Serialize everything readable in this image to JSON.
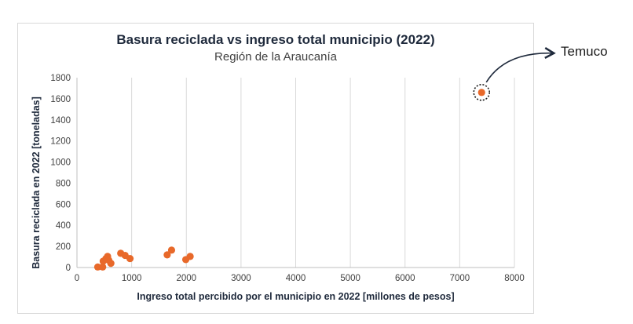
{
  "chart_data": {
    "type": "scatter",
    "title": "Basura reciclada vs ingreso total municipio (2022)",
    "subtitle": "Región de la Araucanía",
    "xlabel": "Ingreso total percibido por el municipio en 2022 [millones de pesos]",
    "ylabel": "Basura reciclada en 2022 [toneladas]",
    "xlim": [
      0,
      8000
    ],
    "ylim": [
      0,
      1800
    ],
    "xticks": [
      0,
      1000,
      2000,
      3000,
      4000,
      5000,
      6000,
      7000,
      8000
    ],
    "yticks": [
      0,
      200,
      400,
      600,
      800,
      1000,
      1200,
      1400,
      1600,
      1800
    ],
    "grid": "vertical",
    "marker_color": "#e8692a",
    "points": [
      {
        "x": 380,
        "y": 5
      },
      {
        "x": 470,
        "y": 5
      },
      {
        "x": 480,
        "y": 60
      },
      {
        "x": 530,
        "y": 85
      },
      {
        "x": 560,
        "y": 105
      },
      {
        "x": 580,
        "y": 70
      },
      {
        "x": 620,
        "y": 40
      },
      {
        "x": 800,
        "y": 135
      },
      {
        "x": 880,
        "y": 115
      },
      {
        "x": 970,
        "y": 85
      },
      {
        "x": 1650,
        "y": 120
      },
      {
        "x": 1730,
        "y": 165
      },
      {
        "x": 1990,
        "y": 75
      },
      {
        "x": 2070,
        "y": 105
      },
      {
        "x": 7400,
        "y": 1660
      }
    ],
    "annotation": {
      "label": "Temuco",
      "x": 7400,
      "y": 1660
    }
  }
}
